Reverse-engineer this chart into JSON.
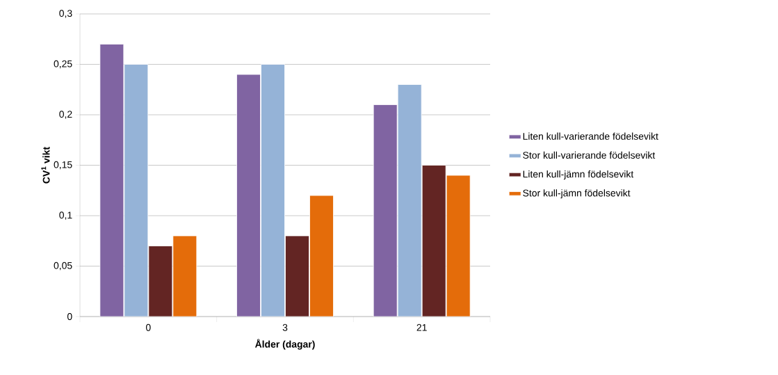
{
  "chart_data": {
    "type": "bar",
    "xlabel": "Ålder (dagar)",
    "ylabel": "CV$^{1}$ vikt",
    "categories": [
      "0",
      "3",
      "21"
    ],
    "series": [
      {
        "name": "Liten kull-varierande födelsevikt",
        "color": "#8064a2",
        "values": [
          0.27,
          0.24,
          0.21
        ]
      },
      {
        "name": "Stor kull-varierande födelsevikt",
        "color": "#95b3d7",
        "values": [
          0.25,
          0.25,
          0.23
        ]
      },
      {
        "name": "Liten kull-jämn födelsevikt",
        "color": "#632523",
        "values": [
          0.07,
          0.08,
          0.15
        ]
      },
      {
        "name": "Stor kull-jämn födelsevikt",
        "color": "#e46c0a",
        "values": [
          0.08,
          0.12,
          0.14
        ]
      }
    ],
    "ylim": [
      0,
      0.3
    ],
    "yticks": [
      {
        "value": 0,
        "label": "0"
      },
      {
        "value": 0.05,
        "label": "0,05"
      },
      {
        "value": 0.1,
        "label": "0,1"
      },
      {
        "value": 0.15,
        "label": "0,15"
      },
      {
        "value": 0.2,
        "label": "0,2"
      },
      {
        "value": 0.25,
        "label": "0,25"
      },
      {
        "value": 0.3,
        "label": "0,3"
      }
    ],
    "grid": "y",
    "legend": "right"
  }
}
